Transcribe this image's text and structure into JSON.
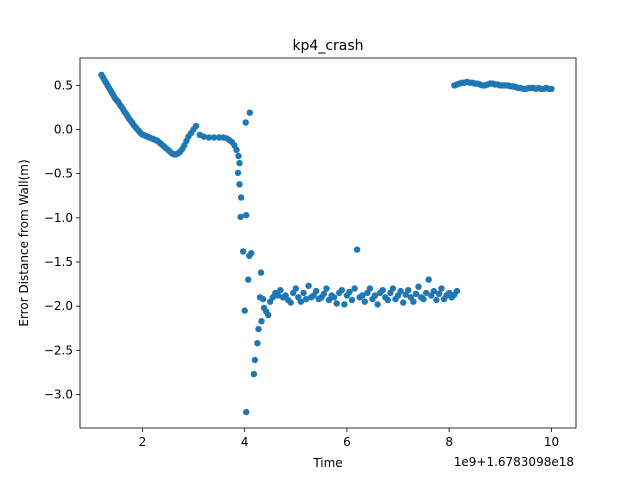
{
  "chart_data": {
    "type": "scatter",
    "title": "kp4_crash",
    "xlabel": "Time",
    "ylabel": "Error Distance from Wall(m)",
    "x_offset_label": "1e9+1.6783098e18",
    "xlim": [
      0.78,
      10.48
    ],
    "ylim": [
      -3.38,
      0.81
    ],
    "xticks": [
      2,
      4,
      6,
      8,
      10
    ],
    "yticks": [
      0.5,
      0.0,
      -0.5,
      -1.0,
      -1.5,
      -2.0,
      -2.5,
      -3.0
    ],
    "xtick_labels": [
      "2",
      "4",
      "6",
      "8",
      "10"
    ],
    "ytick_labels": [
      "0.5",
      "0.0",
      "−0.5",
      "−1.0",
      "−1.5",
      "−2.0",
      "−2.5",
      "−3.0"
    ],
    "grid": false,
    "marker_color": "#1f77b4",
    "points": [
      [
        1.2,
        0.62
      ],
      [
        1.23,
        0.59
      ],
      [
        1.26,
        0.56
      ],
      [
        1.29,
        0.53
      ],
      [
        1.32,
        0.5
      ],
      [
        1.35,
        0.47
      ],
      [
        1.38,
        0.44
      ],
      [
        1.41,
        0.41
      ],
      [
        1.44,
        0.38
      ],
      [
        1.47,
        0.35
      ],
      [
        1.5,
        0.33
      ],
      [
        1.53,
        0.31
      ],
      [
        1.56,
        0.28
      ],
      [
        1.59,
        0.26
      ],
      [
        1.62,
        0.23
      ],
      [
        1.65,
        0.2
      ],
      [
        1.68,
        0.18
      ],
      [
        1.71,
        0.15
      ],
      [
        1.74,
        0.12
      ],
      [
        1.77,
        0.1
      ],
      [
        1.8,
        0.08
      ],
      [
        1.83,
        0.05
      ],
      [
        1.86,
        0.03
      ],
      [
        1.89,
        0.01
      ],
      [
        1.92,
        -0.01
      ],
      [
        1.95,
        -0.03
      ],
      [
        1.98,
        -0.05
      ],
      [
        2.02,
        -0.06
      ],
      [
        2.06,
        -0.07
      ],
      [
        2.1,
        -0.08
      ],
      [
        2.14,
        -0.09
      ],
      [
        2.18,
        -0.1
      ],
      [
        2.22,
        -0.11
      ],
      [
        2.26,
        -0.12
      ],
      [
        2.3,
        -0.13
      ],
      [
        2.34,
        -0.15
      ],
      [
        2.38,
        -0.17
      ],
      [
        2.42,
        -0.19
      ],
      [
        2.46,
        -0.21
      ],
      [
        2.5,
        -0.23
      ],
      [
        2.54,
        -0.25
      ],
      [
        2.58,
        -0.27
      ],
      [
        2.62,
        -0.28
      ],
      [
        2.66,
        -0.28
      ],
      [
        2.7,
        -0.27
      ],
      [
        2.74,
        -0.25
      ],
      [
        2.78,
        -0.22
      ],
      [
        2.82,
        -0.18
      ],
      [
        2.86,
        -0.13
      ],
      [
        2.9,
        -0.08
      ],
      [
        2.95,
        -0.04
      ],
      [
        3.0,
        0.0
      ],
      [
        3.05,
        0.04
      ],
      [
        3.12,
        -0.06
      ],
      [
        3.2,
        -0.08
      ],
      [
        3.3,
        -0.09
      ],
      [
        3.4,
        -0.09
      ],
      [
        3.5,
        -0.09
      ],
      [
        3.58,
        -0.09
      ],
      [
        3.65,
        -0.1
      ],
      [
        3.7,
        -0.12
      ],
      [
        3.75,
        -0.14
      ],
      [
        3.8,
        -0.18
      ],
      [
        3.84,
        -0.23
      ],
      [
        3.88,
        -0.3
      ],
      [
        3.9,
        -0.38
      ],
      [
        3.87,
        -0.49
      ],
      [
        3.9,
        -0.62
      ],
      [
        3.93,
        -0.77
      ],
      [
        3.92,
        -0.99
      ],
      [
        3.97,
        -1.38
      ],
      [
        4.03,
        -0.97
      ],
      [
        4.02,
        0.08
      ],
      [
        4.1,
        0.19
      ],
      [
        4.09,
        -1.43
      ],
      [
        4.13,
        -1.4
      ],
      [
        4.07,
        -1.7
      ],
      [
        4.0,
        -2.05
      ],
      [
        4.03,
        -3.2
      ],
      [
        4.18,
        -2.77
      ],
      [
        4.2,
        -2.61
      ],
      [
        4.25,
        -2.42
      ],
      [
        4.27,
        -2.26
      ],
      [
        4.33,
        -2.17
      ],
      [
        4.3,
        -1.9
      ],
      [
        4.32,
        -1.62
      ],
      [
        4.36,
        -1.92
      ],
      [
        4.38,
        -2.02
      ],
      [
        4.42,
        -2.06
      ],
      [
        4.46,
        -2.1
      ],
      [
        4.5,
        -1.95
      ],
      [
        4.55,
        -1.9
      ],
      [
        4.6,
        -1.85
      ],
      [
        4.65,
        -1.88
      ],
      [
        4.7,
        -1.82
      ],
      [
        4.75,
        -1.9
      ],
      [
        4.8,
        -1.88
      ],
      [
        4.85,
        -1.93
      ],
      [
        4.9,
        -1.96
      ],
      [
        4.95,
        -1.85
      ],
      [
        5.0,
        -1.8
      ],
      [
        5.05,
        -1.9
      ],
      [
        5.1,
        -1.95
      ],
      [
        5.15,
        -1.85
      ],
      [
        5.2,
        -1.92
      ],
      [
        5.25,
        -1.77
      ],
      [
        5.3,
        -1.9
      ],
      [
        5.35,
        -1.88
      ],
      [
        5.4,
        -1.83
      ],
      [
        5.45,
        -1.92
      ],
      [
        5.5,
        -1.9
      ],
      [
        5.55,
        -1.86
      ],
      [
        5.6,
        -1.8
      ],
      [
        5.65,
        -1.93
      ],
      [
        5.7,
        -1.88
      ],
      [
        5.75,
        -1.9
      ],
      [
        5.8,
        -1.97
      ],
      [
        5.85,
        -1.85
      ],
      [
        5.9,
        -1.82
      ],
      [
        5.95,
        -1.98
      ],
      [
        6.0,
        -1.88
      ],
      [
        6.05,
        -1.84
      ],
      [
        6.1,
        -1.93
      ],
      [
        6.15,
        -1.8
      ],
      [
        6.2,
        -1.36
      ],
      [
        6.25,
        -1.9
      ],
      [
        6.3,
        -1.88
      ],
      [
        6.35,
        -1.95
      ],
      [
        6.4,
        -1.85
      ],
      [
        6.45,
        -1.8
      ],
      [
        6.5,
        -1.92
      ],
      [
        6.55,
        -1.88
      ],
      [
        6.6,
        -1.98
      ],
      [
        6.65,
        -1.85
      ],
      [
        6.7,
        -1.82
      ],
      [
        6.75,
        -1.9
      ],
      [
        6.8,
        -1.93
      ],
      [
        6.85,
        -1.85
      ],
      [
        6.9,
        -1.8
      ],
      [
        6.95,
        -1.92
      ],
      [
        7.0,
        -1.88
      ],
      [
        7.05,
        -1.83
      ],
      [
        7.1,
        -1.96
      ],
      [
        7.15,
        -1.87
      ],
      [
        7.2,
        -1.82
      ],
      [
        7.25,
        -1.9
      ],
      [
        7.3,
        -1.95
      ],
      [
        7.35,
        -1.86
      ],
      [
        7.4,
        -1.78
      ],
      [
        7.45,
        -1.9
      ],
      [
        7.5,
        -1.92
      ],
      [
        7.55,
        -1.85
      ],
      [
        7.6,
        -1.7
      ],
      [
        7.65,
        -1.88
      ],
      [
        7.7,
        -1.83
      ],
      [
        7.75,
        -1.93
      ],
      [
        7.8,
        -1.86
      ],
      [
        7.85,
        -1.8
      ],
      [
        7.9,
        -1.92
      ],
      [
        7.95,
        -1.88
      ],
      [
        8.0,
        -1.85
      ],
      [
        8.05,
        -1.9
      ],
      [
        8.1,
        -1.87
      ],
      [
        8.15,
        -1.83
      ],
      [
        8.1,
        0.5
      ],
      [
        8.15,
        0.51
      ],
      [
        8.2,
        0.52
      ],
      [
        8.25,
        0.53
      ],
      [
        8.3,
        0.53
      ],
      [
        8.35,
        0.54
      ],
      [
        8.4,
        0.53
      ],
      [
        8.45,
        0.53
      ],
      [
        8.5,
        0.52
      ],
      [
        8.55,
        0.52
      ],
      [
        8.6,
        0.51
      ],
      [
        8.65,
        0.5
      ],
      [
        8.7,
        0.5
      ],
      [
        8.75,
        0.51
      ],
      [
        8.8,
        0.52
      ],
      [
        8.85,
        0.52
      ],
      [
        8.9,
        0.51
      ],
      [
        8.95,
        0.51
      ],
      [
        9.0,
        0.5
      ],
      [
        9.05,
        0.5
      ],
      [
        9.1,
        0.5
      ],
      [
        9.15,
        0.5
      ],
      [
        9.2,
        0.49
      ],
      [
        9.25,
        0.49
      ],
      [
        9.3,
        0.48
      ],
      [
        9.35,
        0.47
      ],
      [
        9.4,
        0.47
      ],
      [
        9.45,
        0.46
      ],
      [
        9.5,
        0.46
      ],
      [
        9.55,
        0.47
      ],
      [
        9.6,
        0.47
      ],
      [
        9.65,
        0.47
      ],
      [
        9.7,
        0.46
      ],
      [
        9.75,
        0.47
      ],
      [
        9.8,
        0.46
      ],
      [
        9.85,
        0.46
      ],
      [
        9.9,
        0.47
      ],
      [
        9.95,
        0.46
      ],
      [
        10.0,
        0.46
      ]
    ]
  }
}
